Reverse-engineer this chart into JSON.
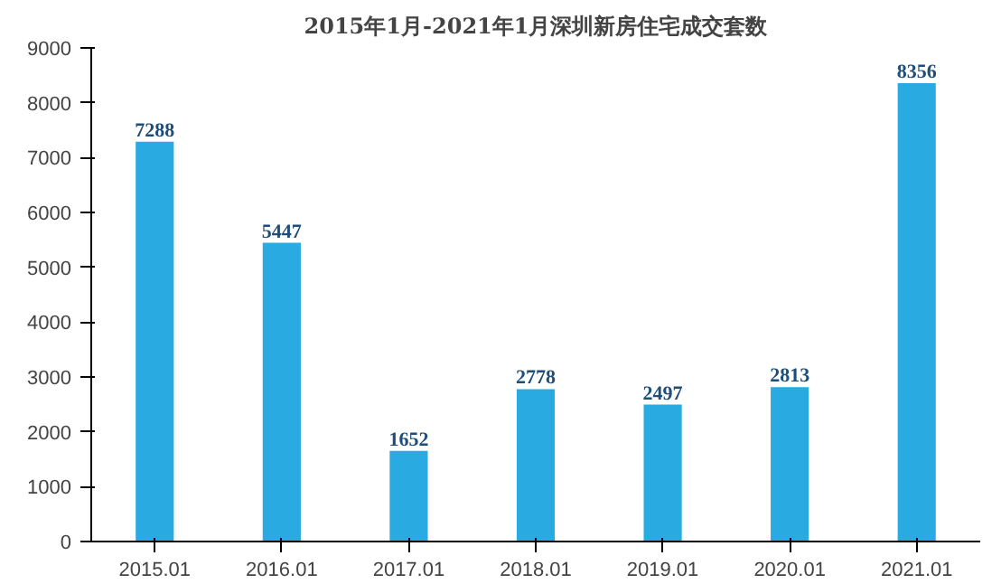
{
  "chart_data": {
    "type": "bar",
    "title": "2015年1月-2021年1月深圳新房住宅成交套数",
    "categories": [
      "2015.01",
      "2016.01",
      "2017.01",
      "2018.01",
      "2019.01",
      "2020.01",
      "2021.01"
    ],
    "values": [
      7288,
      5447,
      1652,
      2778,
      2497,
      2813,
      8356
    ],
    "color": "#29abe2",
    "ylim": [
      0,
      9000
    ],
    "yticks": [
      0,
      1000,
      2000,
      3000,
      4000,
      5000,
      6000,
      7000,
      8000,
      9000
    ],
    "grid": false,
    "data_labels": true
  }
}
